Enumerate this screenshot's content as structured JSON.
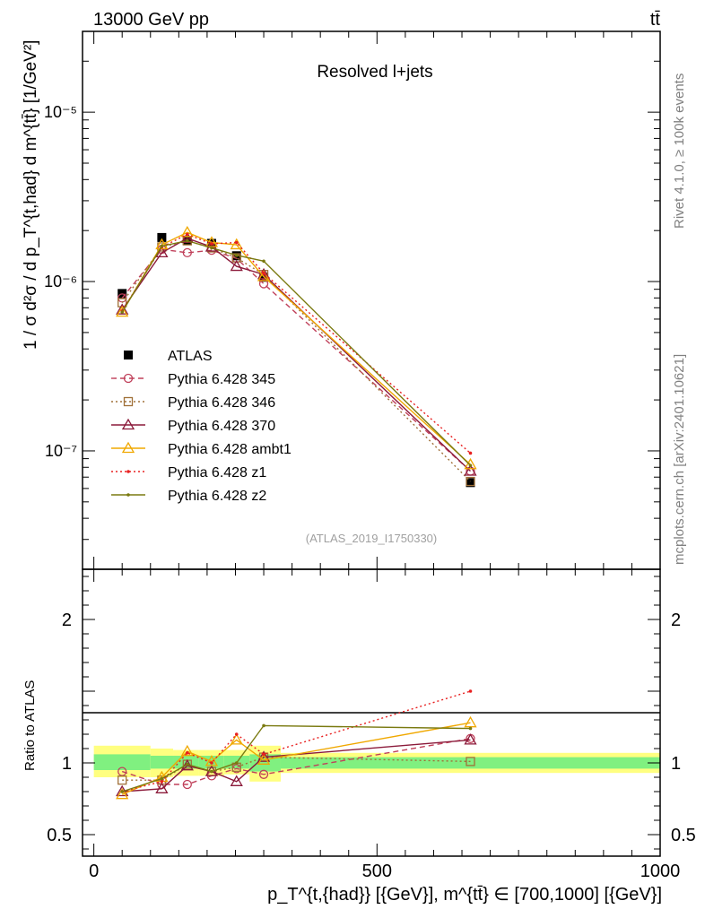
{
  "header": {
    "left_label": "13000 GeV pp",
    "right_label": "tt̄"
  },
  "side": {
    "rivet_label": "Rivet 4.1.0, ≥ 100k events",
    "mcplots_label": "mcplots.cern.ch [arXiv:2401.10621]"
  },
  "chart_data": [
    {
      "type": "line",
      "panel": "main",
      "title": "Resolved l+jets",
      "ylabel": "1 / σ d²σ / d p^{t,{had}}_{T} d m^{tt̄} [1/GeV²]",
      "ylabel_text": "1 / σ d²σ / d p_T^{t,had} d m^{tt̄} [1/GeV²]",
      "xlabel": "",
      "yscale": "log",
      "ylim": [
        2e-08,
        3e-05
      ],
      "xlim": [
        -20,
        1000
      ],
      "ytick_labels": [
        {
          "value": 1e-07,
          "label": "10⁻⁷"
        },
        {
          "value": 1e-06,
          "label": "10⁻⁶"
        },
        {
          "value": 1e-05,
          "label": "10⁻⁵"
        }
      ],
      "analysis_tag": "(ATLAS_2019_I1750330)",
      "legend_position": "center-left",
      "x": [
        50,
        120,
        165,
        208,
        252,
        300,
        665
      ],
      "series": [
        {
          "name": "ATLAS",
          "color": "#000000",
          "marker": "filled-square",
          "line": "none",
          "values": [
            8.5e-07,
            1.82e-06,
            1.75e-06,
            1.68e-06,
            1.42e-06,
            1.06e-06,
            6.5e-08
          ]
        },
        {
          "name": "Pythia 6.428 345",
          "color": "#c0405a",
          "marker": "open-circle",
          "line": "dashed",
          "values": [
            8e-07,
            1.55e-06,
            1.48e-06,
            1.53e-06,
            1.37e-06,
            9.7e-07,
            7.6e-08
          ]
        },
        {
          "name": "Pythia 6.428 346",
          "color": "#a07038",
          "marker": "open-square",
          "line": "dotted",
          "values": [
            7.5e-07,
            1.6e-06,
            1.74e-06,
            1.58e-06,
            1.38e-06,
            1.1e-06,
            6.6e-08
          ]
        },
        {
          "name": "Pythia 6.428 370",
          "color": "#8b1a3a",
          "marker": "open-triangle",
          "line": "solid",
          "values": [
            6.8e-07,
            1.48e-06,
            1.8e-06,
            1.6e-06,
            1.23e-06,
            1.1e-06,
            7.6e-08
          ]
        },
        {
          "name": "Pythia 6.428 ambt1",
          "color": "#f0a800",
          "marker": "open-triangle",
          "line": "solid",
          "values": [
            6.6e-07,
            1.65e-06,
            1.95e-06,
            1.7e-06,
            1.65e-06,
            1.07e-06,
            8.3e-08
          ]
        },
        {
          "name": "Pythia 6.428 z1",
          "color": "#e82020",
          "marker": "dot",
          "line": "dotted",
          "values": [
            6.7e-07,
            1.6e-06,
            1.9e-06,
            1.67e-06,
            1.7e-06,
            1.12e-06,
            9.7e-08
          ]
        },
        {
          "name": "Pythia 6.428 z2",
          "color": "#7a7a10",
          "marker": "dot",
          "line": "solid",
          "values": [
            6.6e-07,
            1.62e-06,
            1.74e-06,
            1.58e-06,
            1.43e-06,
            1.32e-06,
            8.2e-08
          ]
        }
      ]
    },
    {
      "type": "line",
      "panel": "ratio",
      "title": "",
      "ylabel": "Ratio to ATLAS",
      "xlabel": "p^{t,{had}}_{T} [{GeV}], m^{tt̄} ∈ [700,1000] [{GeV}]",
      "xlabel_text": "p_T^{t,{had}} [{GeV}], m^{tt̄} ∈ [700,1000] [{GeV}]",
      "ylim": [
        0.35,
        2.35
      ],
      "xlim": [
        -20,
        1000
      ],
      "ytick_labels": [
        {
          "value": 0.5,
          "label": "0.5"
        },
        {
          "value": 1,
          "label": "1"
        },
        {
          "value": 2,
          "label": "2"
        }
      ],
      "xtick_labels": [
        {
          "value": 0,
          "label": "0"
        },
        {
          "value": 500,
          "label": "500"
        },
        {
          "value": 1000,
          "label": "1000"
        }
      ],
      "bands": [
        {
          "x0": 0,
          "x1": 100,
          "inner": [
            0.95,
            1.06
          ],
          "outer": [
            0.9,
            1.12
          ]
        },
        {
          "x0": 100,
          "x1": 140,
          "inner": [
            0.96,
            1.05
          ],
          "outer": [
            0.9,
            1.1
          ]
        },
        {
          "x0": 140,
          "x1": 185,
          "inner": [
            0.96,
            1.05
          ],
          "outer": [
            0.91,
            1.09
          ]
        },
        {
          "x0": 185,
          "x1": 230,
          "inner": [
            0.96,
            1.05
          ],
          "outer": [
            0.91,
            1.09
          ]
        },
        {
          "x0": 230,
          "x1": 275,
          "inner": [
            0.96,
            1.05
          ],
          "outer": [
            0.92,
            1.09
          ]
        },
        {
          "x0": 275,
          "x1": 330,
          "inner": [
            0.94,
            1.06
          ],
          "outer": [
            0.87,
            1.12
          ]
        },
        {
          "x0": 330,
          "x1": 1000,
          "inner": [
            0.96,
            1.04
          ],
          "outer": [
            0.93,
            1.07
          ]
        }
      ],
      "x": [
        50,
        120,
        165,
        208,
        252,
        300,
        665
      ],
      "series": [
        {
          "name": "Pythia 6.428 345",
          "color": "#c0405a",
          "marker": "open-circle",
          "line": "dashed",
          "values": [
            0.94,
            0.85,
            0.85,
            0.91,
            0.96,
            0.92,
            1.17
          ]
        },
        {
          "name": "Pythia 6.428 346",
          "color": "#a07038",
          "marker": "open-square",
          "line": "dotted",
          "values": [
            0.88,
            0.88,
            0.99,
            0.94,
            0.97,
            1.04,
            1.01
          ]
        },
        {
          "name": "Pythia 6.428 370",
          "color": "#8b1a3a",
          "marker": "open-triangle",
          "line": "solid",
          "values": [
            0.8,
            0.82,
            0.98,
            0.94,
            0.87,
            1.04,
            1.16
          ]
        },
        {
          "name": "Pythia 6.428 ambt1",
          "color": "#f0a800",
          "marker": "open-triangle",
          "line": "solid",
          "values": [
            0.78,
            0.9,
            1.08,
            1.01,
            1.16,
            1.02,
            1.28
          ]
        },
        {
          "name": "Pythia 6.428 z1",
          "color": "#e82020",
          "marker": "dot",
          "line": "dotted",
          "values": [
            0.8,
            0.87,
            1.07,
            1.0,
            1.2,
            1.06,
            1.5
          ]
        },
        {
          "name": "Pythia 6.428 z2",
          "color": "#7a7a10",
          "marker": "dot",
          "line": "solid",
          "values": [
            0.8,
            0.89,
            0.99,
            0.94,
            1.0,
            1.26,
            1.24
          ]
        }
      ]
    }
  ]
}
